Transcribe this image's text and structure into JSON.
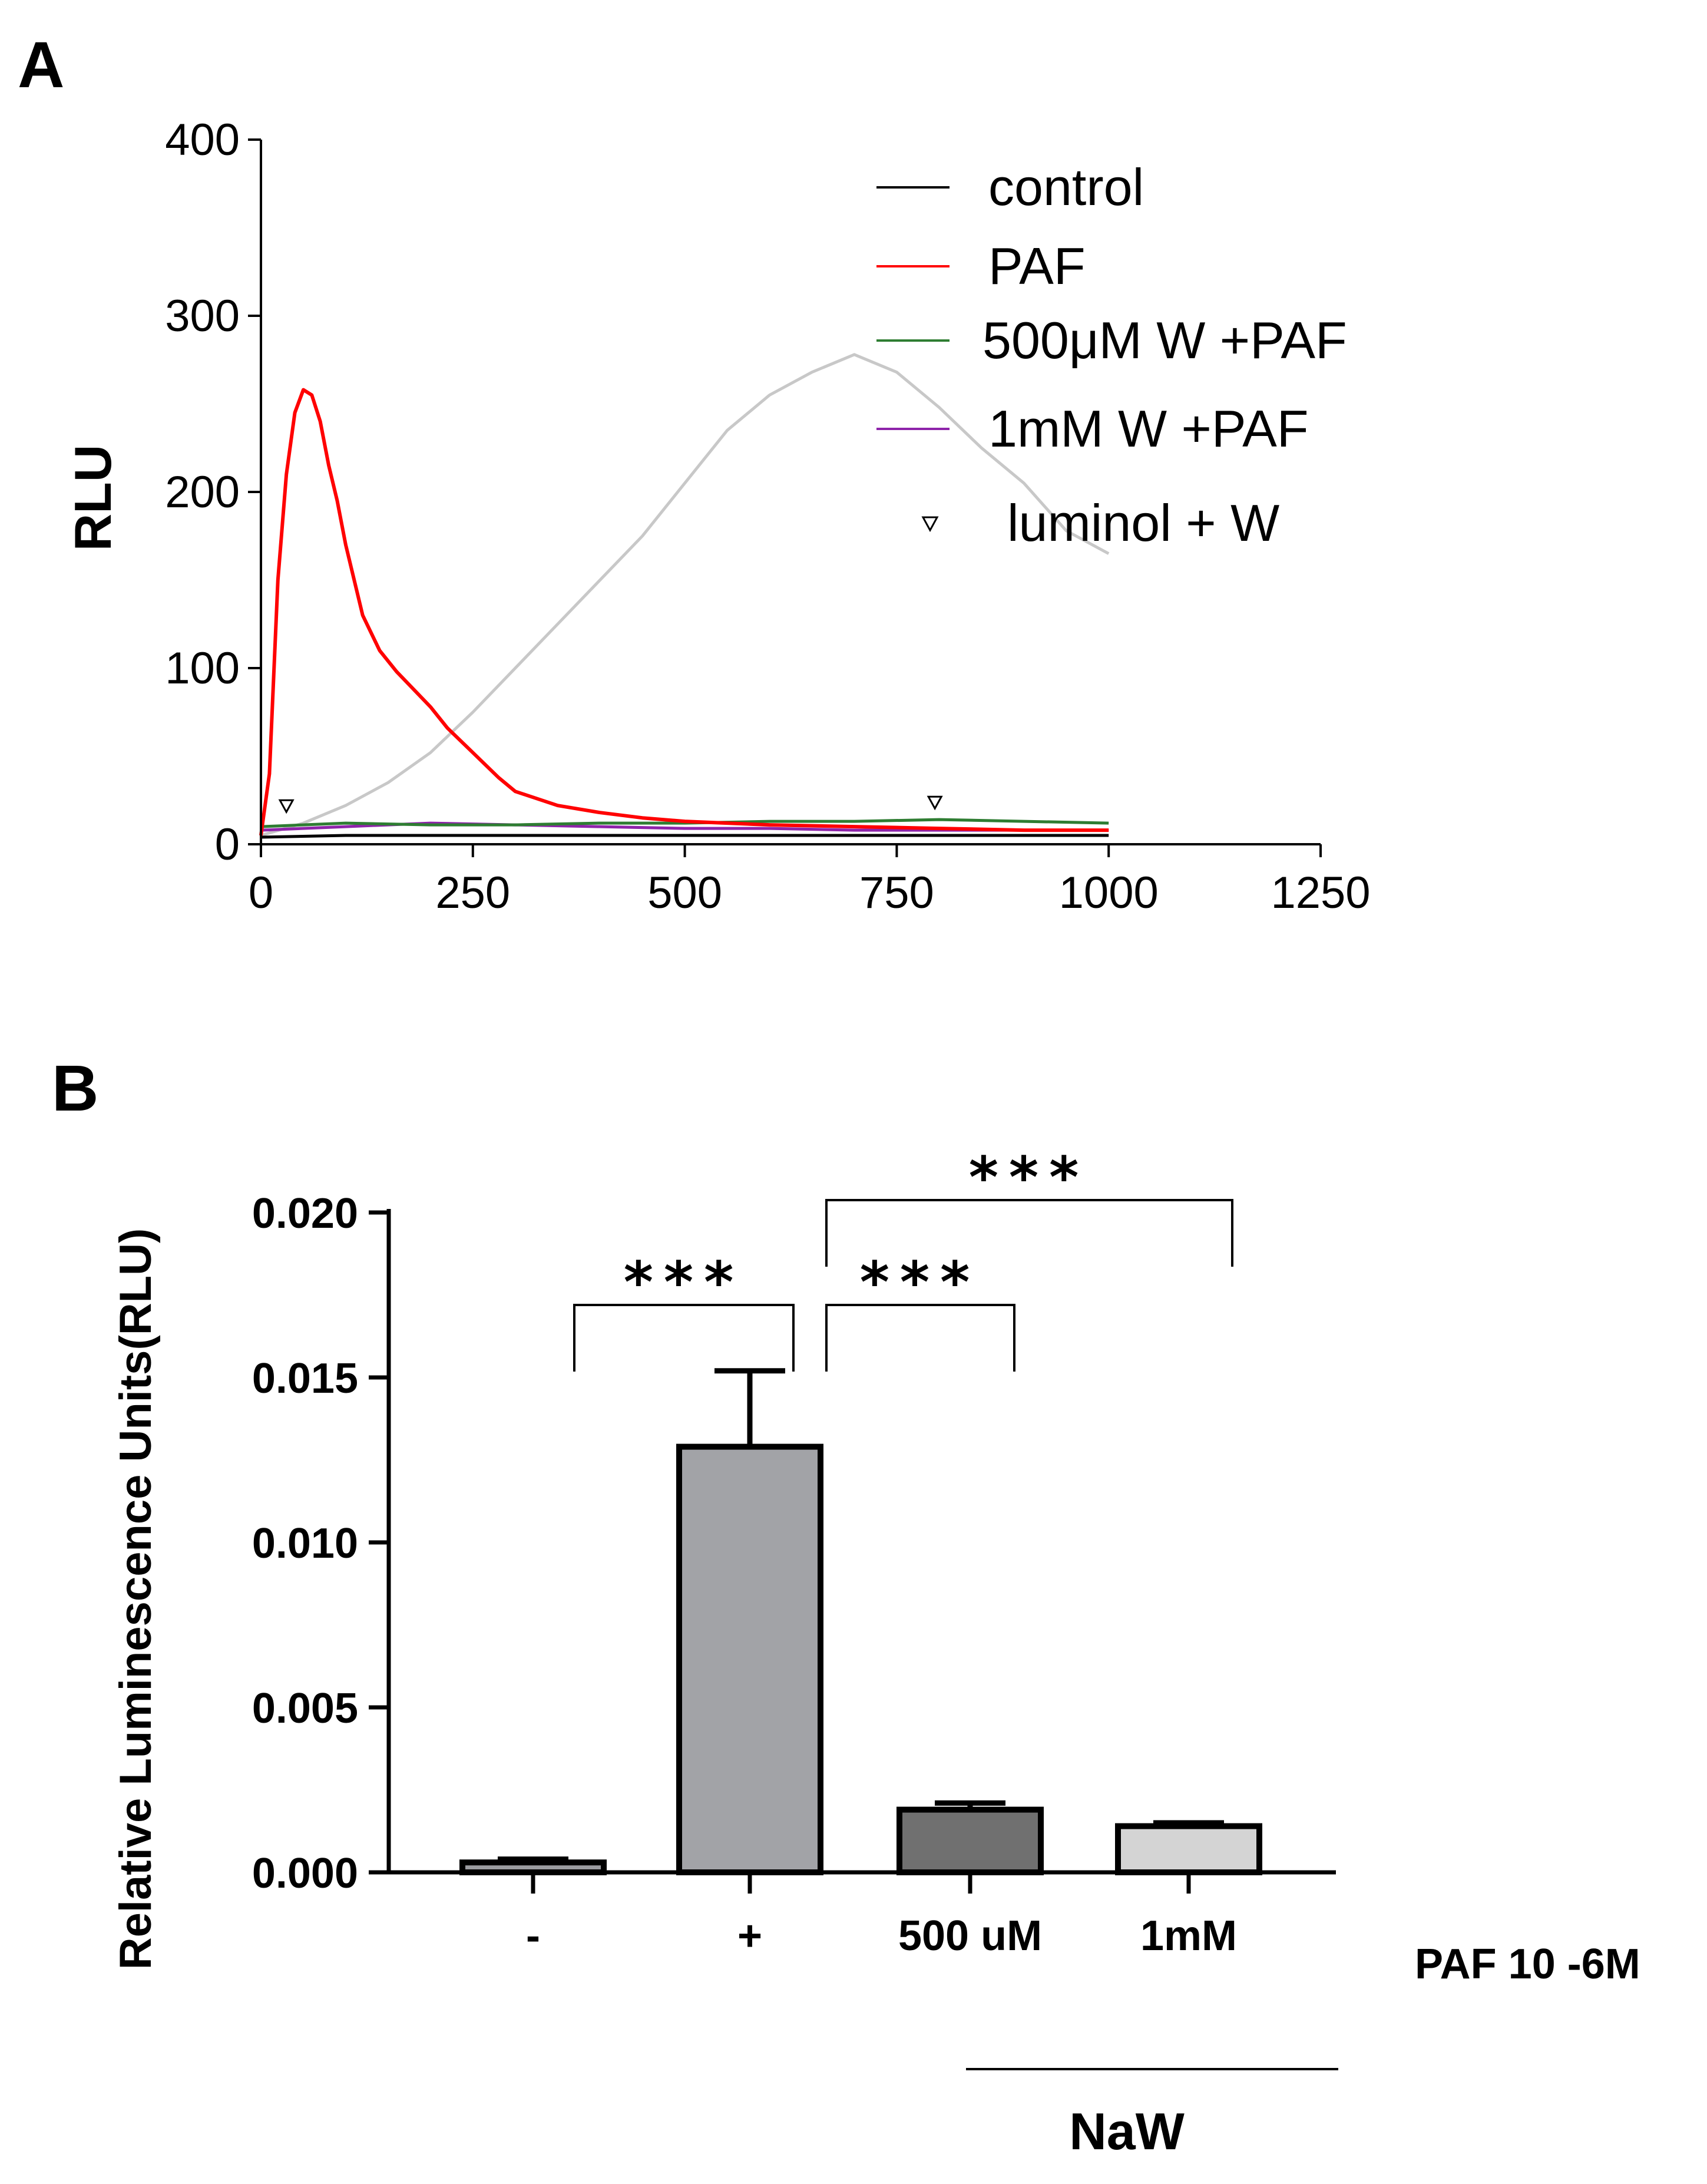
{
  "panels": {
    "a_label": "A",
    "b_label": "B"
  },
  "chart_data": [
    {
      "type": "line",
      "panel": "A",
      "title": "",
      "xlabel": "",
      "ylabel": "RLU",
      "xlim": [
        0,
        1250
      ],
      "ylim": [
        0,
        400
      ],
      "xticks": [
        "0",
        "250",
        "500",
        "750",
        "1000",
        "1250"
      ],
      "yticks": [
        "0",
        "100",
        "200",
        "300",
        "400"
      ],
      "legend_position": "top-right",
      "series": [
        {
          "name": "control",
          "color": "#000000",
          "x": [
            0,
            100,
            200,
            300,
            400,
            500,
            600,
            700,
            800,
            900,
            1000
          ],
          "y": [
            4,
            5,
            5,
            5,
            5,
            5,
            5,
            5,
            5,
            5,
            5
          ]
        },
        {
          "name": "PAF",
          "color": "#ff0000",
          "x": [
            0,
            10,
            20,
            30,
            40,
            50,
            60,
            70,
            80,
            90,
            100,
            120,
            140,
            160,
            180,
            200,
            220,
            250,
            280,
            300,
            350,
            400,
            450,
            500,
            600,
            700,
            800,
            900,
            1000
          ],
          "y": [
            5,
            40,
            150,
            210,
            245,
            258,
            255,
            240,
            215,
            195,
            170,
            130,
            110,
            98,
            88,
            78,
            66,
            52,
            38,
            30,
            22,
            18,
            15,
            13,
            11,
            10,
            9,
            8,
            8
          ]
        },
        {
          "name": "500μM W +PAF",
          "color": "#2e7d32",
          "x": [
            0,
            100,
            200,
            300,
            400,
            500,
            600,
            700,
            800,
            900,
            1000
          ],
          "y": [
            10,
            12,
            11,
            11,
            12,
            12,
            13,
            13,
            14,
            13,
            12
          ]
        },
        {
          "name": "1mM W +PAF",
          "color": "#8e24aa",
          "x": [
            0,
            100,
            200,
            300,
            400,
            500,
            600,
            700,
            800,
            900,
            1000
          ],
          "y": [
            8,
            10,
            12,
            11,
            10,
            9,
            9,
            8,
            8,
            8,
            8
          ]
        },
        {
          "name": "luminol + W",
          "color": "#c8c8c8",
          "x": [
            0,
            50,
            100,
            150,
            200,
            250,
            300,
            350,
            400,
            450,
            500,
            550,
            600,
            650,
            700,
            750,
            800,
            850,
            900,
            950,
            1000
          ],
          "y": [
            5,
            12,
            22,
            35,
            52,
            75,
            100,
            125,
            150,
            175,
            205,
            235,
            255,
            268,
            278,
            268,
            248,
            225,
            205,
            178,
            165
          ]
        }
      ],
      "markers": [
        {
          "series": "luminol + W",
          "x": [
            30,
            795
          ],
          "y": [
            22,
            24
          ]
        }
      ]
    },
    {
      "type": "bar",
      "panel": "B",
      "title": "",
      "xlabel": "PAF 10 -6M",
      "ylabel": "Relative Luminescence Units(RLU)",
      "ylim": [
        0,
        0.02
      ],
      "yticks": [
        "0.000",
        "0.005",
        "0.010",
        "0.015",
        "0.020"
      ],
      "categories": [
        "-",
        "+",
        "500 uM",
        "1mM"
      ],
      "values": [
        0.0003,
        0.0129,
        0.0019,
        0.0014
      ],
      "errors": [
        0.0001,
        0.0023,
        0.0002,
        0.0001
      ],
      "colors": [
        "#9b9ca0",
        "#a2a3a7",
        "#707070",
        "#d4d4d4"
      ],
      "group_label": "NaW",
      "significance": [
        {
          "from": "-",
          "to": "+",
          "label": "***"
        },
        {
          "from": "+",
          "to": "500 uM",
          "label": "***"
        },
        {
          "from": "+",
          "to": "1mM",
          "label": "***"
        }
      ]
    }
  ]
}
